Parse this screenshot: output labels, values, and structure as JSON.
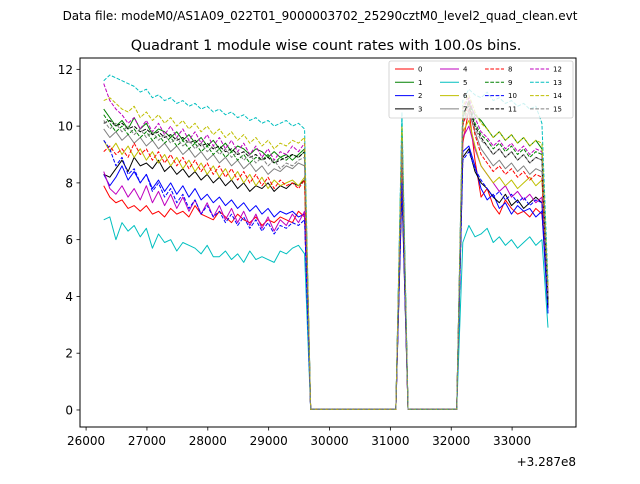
{
  "suptitle": "Data file: modeM0/AS1A09_022T01_9000003702_25290cztM0_level2_quad_clean.evt",
  "chart_data": {
    "type": "line",
    "title": "Quadrant 1 module wise count rates with 100.0s bins.",
    "xlabel": "",
    "ylabel": "",
    "x_offset_label": "+3.287e8",
    "xlim": [
      25900,
      34050
    ],
    "ylim": [
      -0.6,
      12.4
    ],
    "x_ticks": [
      26000,
      27000,
      28000,
      29000,
      30000,
      31000,
      32000,
      33000
    ],
    "x_tick_labels": [
      "26000",
      "27000",
      "28000",
      "29000",
      "30000",
      "31000",
      "32000",
      "33000"
    ],
    "y_ticks": [
      0,
      2,
      4,
      6,
      8,
      10,
      12
    ],
    "y_tick_labels": [
      "0",
      "2",
      "4",
      "6",
      "8",
      "10",
      "12"
    ],
    "grid": false,
    "legend_position": "top-right",
    "segments": [
      {
        "x_start": 26290,
        "x_end": 29690
      },
      {
        "x_start": 31090,
        "x_end": 31390
      },
      {
        "x_start": 32090,
        "x_end": 33590
      }
    ],
    "series": [
      {
        "name": "0",
        "color": "#ff0000",
        "dash": "solid",
        "seg_a": [
          7.9,
          7.5,
          7.3,
          7.4,
          7.1,
          7.2,
          7.0,
          7.2,
          6.9,
          7.0,
          6.8,
          7.1,
          6.9,
          7.0,
          6.8,
          7.2,
          6.9,
          6.8,
          6.7,
          7.0,
          6.8,
          6.6,
          6.9,
          6.7,
          6.6,
          6.8,
          6.5,
          6.7,
          6.6,
          6.8,
          6.7,
          6.6,
          7.0,
          6.8,
          0.02
        ],
        "seg_b": [
          0.02,
          8.5,
          0.02,
          0.02
        ],
        "seg_c": [
          0.02,
          9.4,
          10.6,
          8.8,
          7.5,
          7.8,
          7.2,
          6.9,
          7.4,
          7.1,
          6.9,
          7.0,
          6.8,
          7.1,
          6.9,
          4.4
        ]
      },
      {
        "name": "1",
        "color": "#008000",
        "dash": "solid",
        "seg_a": [
          10.6,
          10.3,
          10.0,
          10.2,
          9.9,
          10.3,
          9.9,
          10.1,
          9.7,
          9.9,
          9.8,
          9.6,
          9.8,
          9.5,
          9.7,
          9.4,
          9.6,
          9.3,
          9.5,
          9.2,
          9.4,
          9.1,
          9.3,
          9.2,
          9.0,
          9.2,
          9.1,
          8.9,
          9.1,
          8.9,
          9.0,
          8.8,
          9.0,
          9.2,
          0.02
        ],
        "seg_b": [
          0.02,
          9.8,
          0.02,
          0.02
        ],
        "seg_c": [
          0.02,
          10.3,
          10.8,
          10.4,
          10.2,
          9.9,
          9.6,
          9.8,
          9.5,
          9.7,
          9.4,
          9.6,
          9.3,
          9.5,
          9.2,
          3.7
        ]
      },
      {
        "name": "2",
        "color": "#0000ff",
        "dash": "solid",
        "seg_a": [
          8.3,
          7.9,
          8.2,
          8.6,
          8.1,
          8.4,
          8.0,
          8.3,
          7.8,
          8.1,
          7.7,
          8.0,
          7.6,
          7.9,
          7.5,
          7.8,
          7.4,
          7.6,
          7.3,
          7.5,
          7.2,
          7.4,
          7.1,
          7.3,
          7.0,
          7.2,
          6.9,
          7.1,
          6.8,
          7.0,
          6.9,
          7.0,
          6.8,
          6.9,
          0.02
        ],
        "seg_b": [
          0.02,
          8.2,
          0.02,
          0.02
        ],
        "seg_c": [
          0.02,
          9.1,
          9.3,
          8.6,
          7.8,
          7.4,
          7.6,
          7.1,
          7.3,
          6.9,
          7.2,
          7.0,
          7.1,
          6.8,
          7.0,
          3.4
        ]
      },
      {
        "name": "3",
        "color": "#000000",
        "dash": "solid",
        "seg_a": [
          8.3,
          8.2,
          8.5,
          8.8,
          8.4,
          8.9,
          8.6,
          8.7,
          8.5,
          8.8,
          8.4,
          8.6,
          8.3,
          8.5,
          8.2,
          8.4,
          8.1,
          8.3,
          8.0,
          8.2,
          7.9,
          8.1,
          7.8,
          8.0,
          7.7,
          7.9,
          7.8,
          8.0,
          7.7,
          7.9,
          7.8,
          8.0,
          7.9,
          8.1,
          0.02
        ],
        "seg_b": [
          0.02,
          7.8,
          0.02,
          0.02
        ],
        "seg_c": [
          0.02,
          8.9,
          9.2,
          8.4,
          8.0,
          7.8,
          7.5,
          7.3,
          7.6,
          7.2,
          7.4,
          7.1,
          7.3,
          7.5,
          7.3,
          3.6
        ]
      },
      {
        "name": "4",
        "color": "#bf00bf",
        "dash": "solid",
        "seg_a": [
          8.4,
          7.8,
          7.6,
          7.9,
          7.5,
          7.8,
          7.4,
          7.9,
          7.3,
          7.7,
          7.2,
          7.6,
          7.1,
          7.5,
          7.0,
          7.4,
          6.9,
          7.3,
          6.8,
          7.2,
          6.7,
          7.1,
          6.6,
          7.0,
          6.5,
          6.9,
          6.4,
          6.8,
          6.3,
          6.7,
          6.5,
          6.9,
          6.6,
          7.0,
          0.02
        ],
        "seg_b": [
          0.02,
          8.4,
          0.02,
          0.02
        ],
        "seg_c": [
          0.02,
          9.6,
          10.0,
          9.2,
          8.6,
          8.3,
          8.0,
          7.7,
          7.9,
          7.5,
          7.7,
          7.4,
          7.6,
          7.3,
          7.5,
          3.8
        ]
      },
      {
        "name": "5",
        "color": "#00bfbf",
        "dash": "solid",
        "seg_a": [
          6.7,
          6.8,
          6.0,
          6.6,
          6.3,
          6.5,
          6.1,
          6.4,
          5.7,
          6.2,
          5.9,
          6.0,
          5.6,
          5.9,
          5.8,
          5.7,
          5.5,
          5.8,
          5.4,
          5.4,
          5.6,
          5.3,
          5.5,
          5.2,
          5.6,
          5.3,
          5.4,
          5.3,
          5.2,
          5.6,
          5.5,
          5.7,
          5.8,
          5.5,
          0.02
        ],
        "seg_b": [
          0.02,
          10.2,
          0.02,
          0.02
        ],
        "seg_c": [
          0.02,
          5.9,
          6.5,
          6.1,
          6.2,
          6.4,
          5.9,
          6.1,
          5.8,
          6.0,
          5.7,
          5.9,
          6.1,
          5.8,
          6.0,
          2.9
        ]
      },
      {
        "name": "6",
        "color": "#bfbf00",
        "dash": "solid",
        "seg_a": [
          9.5,
          9.1,
          9.4,
          9.0,
          9.3,
          8.9,
          9.2,
          8.8,
          9.1,
          8.7,
          9.0,
          8.6,
          8.9,
          8.5,
          8.8,
          8.4,
          8.7,
          8.3,
          8.6,
          8.2,
          8.5,
          8.1,
          8.4,
          8.0,
          8.3,
          7.9,
          8.2,
          7.8,
          8.1,
          7.9,
          8.0,
          8.1,
          7.9,
          8.2,
          0.02
        ],
        "seg_b": [
          0.02,
          8.9,
          0.02,
          0.02
        ],
        "seg_c": [
          0.02,
          9.8,
          10.2,
          9.3,
          8.6,
          8.3,
          8.0,
          8.2,
          7.9,
          8.1,
          7.8,
          8.0,
          8.2,
          7.9,
          8.1,
          3.9
        ]
      },
      {
        "name": "7",
        "color": "#808080",
        "dash": "solid",
        "seg_a": [
          9.9,
          9.6,
          9.8,
          9.5,
          9.7,
          9.4,
          9.6,
          9.3,
          9.5,
          9.2,
          9.4,
          9.1,
          9.3,
          9.0,
          9.2,
          8.9,
          9.1,
          8.8,
          9.0,
          8.7,
          8.9,
          8.6,
          8.8,
          8.5,
          8.7,
          8.4,
          8.6,
          8.3,
          8.5,
          8.4,
          8.6,
          8.5,
          8.7,
          8.6,
          0.02
        ],
        "seg_b": [
          0.02,
          9.2,
          0.02,
          0.02
        ],
        "seg_c": [
          0.02,
          10.1,
          10.5,
          9.8,
          9.2,
          8.9,
          8.6,
          8.8,
          8.5,
          8.7,
          8.4,
          8.6,
          8.3,
          8.5,
          8.4,
          4.1
        ]
      },
      {
        "name": "8",
        "color": "#ff0000",
        "dash": "dashed",
        "seg_a": [
          9.1,
          9.3,
          9.0,
          9.2,
          8.9,
          9.4,
          9.0,
          9.2,
          8.8,
          9.1,
          8.7,
          9.0,
          8.6,
          8.9,
          8.5,
          8.8,
          8.4,
          8.7,
          8.3,
          8.6,
          8.2,
          8.5,
          8.1,
          8.4,
          8.0,
          8.3,
          7.9,
          8.2,
          7.8,
          8.1,
          7.9,
          8.0,
          7.8,
          8.1,
          0.02
        ],
        "seg_b": [
          0.02,
          9.0,
          0.02,
          0.02
        ],
        "seg_c": [
          0.02,
          10.0,
          10.9,
          9.7,
          9.0,
          8.7,
          8.4,
          8.6,
          8.3,
          8.5,
          8.2,
          8.4,
          8.1,
          8.3,
          8.2,
          4.0
        ]
      },
      {
        "name": "9",
        "color": "#008000",
        "dash": "dashed",
        "seg_a": [
          10.4,
          10.1,
          9.8,
          10.0,
          9.7,
          9.9,
          9.6,
          9.8,
          9.5,
          9.7,
          9.4,
          9.6,
          9.3,
          9.5,
          9.2,
          9.4,
          9.1,
          9.3,
          9.0,
          9.2,
          8.9,
          9.1,
          8.8,
          9.0,
          8.7,
          8.9,
          8.8,
          9.0,
          8.7,
          8.9,
          8.8,
          9.0,
          8.9,
          9.1,
          0.02
        ],
        "seg_b": [
          0.02,
          9.9,
          0.02,
          0.02
        ],
        "seg_c": [
          0.02,
          10.4,
          10.9,
          10.1,
          9.7,
          9.5,
          9.2,
          9.4,
          9.1,
          9.3,
          9.0,
          9.2,
          8.9,
          9.1,
          9.0,
          3.8
        ]
      },
      {
        "name": "10",
        "color": "#0000ff",
        "dash": "dashed",
        "seg_a": [
          9.5,
          9.2,
          8.6,
          8.9,
          8.3,
          8.5,
          8.0,
          8.3,
          7.7,
          8.0,
          7.5,
          7.8,
          7.3,
          7.6,
          7.1,
          7.4,
          6.9,
          7.2,
          6.8,
          7.0,
          6.6,
          6.9,
          6.5,
          6.8,
          6.4,
          6.7,
          6.3,
          6.6,
          6.2,
          6.5,
          6.4,
          6.6,
          6.5,
          6.7,
          0.02
        ],
        "seg_b": [
          0.02,
          8.0,
          0.02,
          0.02
        ],
        "seg_c": [
          0.02,
          8.8,
          9.1,
          8.5,
          8.1,
          7.8,
          7.5,
          7.7,
          7.4,
          7.6,
          7.3,
          7.5,
          7.2,
          7.4,
          7.3,
          3.5
        ]
      },
      {
        "name": "11",
        "color": "#000000",
        "dash": "dashed",
        "seg_a": [
          10.1,
          10.2,
          10.0,
          10.1,
          9.9,
          10.0,
          9.8,
          9.9,
          9.7,
          9.8,
          9.6,
          9.7,
          9.5,
          9.6,
          9.4,
          9.5,
          9.3,
          9.4,
          9.2,
          9.3,
          9.1,
          9.2,
          9.0,
          9.1,
          8.9,
          9.0,
          8.8,
          8.9,
          8.7,
          8.8,
          8.9,
          9.0,
          8.9,
          9.1,
          0.02
        ],
        "seg_b": [
          0.02,
          9.6,
          0.02,
          0.02
        ],
        "seg_c": [
          0.02,
          10.5,
          10.7,
          10.0,
          9.6,
          9.3,
          9.0,
          9.2,
          8.9,
          9.1,
          8.8,
          9.0,
          8.7,
          8.9,
          8.8,
          3.9
        ]
      },
      {
        "name": "12",
        "color": "#bf00bf",
        "dash": "dashed",
        "seg_a": [
          11.5,
          10.9,
          10.6,
          10.4,
          10.1,
          10.3,
          9.9,
          10.2,
          9.8,
          10.1,
          9.7,
          10.0,
          9.6,
          9.9,
          9.5,
          9.8,
          9.4,
          9.7,
          9.3,
          9.6,
          9.2,
          9.5,
          9.1,
          9.4,
          9.0,
          9.3,
          8.9,
          9.2,
          8.8,
          9.1,
          9.0,
          9.3,
          9.1,
          9.4,
          0.02
        ],
        "seg_b": [
          0.02,
          9.7,
          0.02,
          0.02
        ],
        "seg_c": [
          0.02,
          10.6,
          11.0,
          10.3,
          9.8,
          9.6,
          9.3,
          9.5,
          9.2,
          9.4,
          9.1,
          9.3,
          9.0,
          9.2,
          9.1,
          4.2
        ]
      },
      {
        "name": "13",
        "color": "#00bfbf",
        "dash": "dashed",
        "seg_a": [
          11.6,
          11.8,
          11.7,
          11.6,
          11.5,
          11.4,
          11.2,
          11.3,
          11.0,
          11.1,
          10.9,
          11.0,
          10.8,
          10.9,
          10.7,
          10.8,
          10.6,
          10.7,
          10.5,
          10.6,
          10.4,
          10.5,
          10.3,
          10.4,
          10.2,
          10.3,
          10.1,
          10.2,
          10.0,
          10.1,
          10.2,
          10.0,
          10.1,
          9.9,
          0.02
        ],
        "seg_b": [
          0.02,
          10.5,
          0.02,
          0.02
        ],
        "seg_c": [
          0.02,
          10.9,
          11.3,
          11.1,
          11.0,
          11.2,
          10.9,
          11.0,
          10.8,
          10.9,
          10.7,
          10.8,
          10.6,
          10.7,
          10.1,
          4.5
        ]
      },
      {
        "name": "14",
        "color": "#bfbf00",
        "dash": "dashed",
        "seg_a": [
          10.9,
          11.0,
          10.8,
          10.6,
          10.5,
          10.7,
          10.3,
          10.5,
          10.2,
          10.4,
          10.1,
          10.3,
          10.0,
          10.2,
          9.9,
          10.1,
          9.8,
          10.0,
          9.7,
          9.9,
          9.6,
          9.8,
          9.5,
          9.7,
          9.4,
          9.6,
          9.3,
          9.5,
          9.2,
          9.4,
          9.3,
          9.5,
          9.4,
          9.6,
          0.02
        ],
        "seg_b": [
          0.02,
          10.0,
          0.02,
          0.02
        ],
        "seg_c": [
          0.02,
          10.7,
          11.1,
          10.5,
          10.1,
          9.9,
          9.6,
          9.8,
          9.5,
          9.7,
          9.4,
          9.6,
          9.3,
          9.5,
          9.4,
          4.3
        ]
      },
      {
        "name": "15",
        "color": "#808080",
        "dash": "dashed",
        "seg_a": [
          10.2,
          9.9,
          10.1,
          9.8,
          10.0,
          9.7,
          9.9,
          9.6,
          9.8,
          9.5,
          9.7,
          9.4,
          9.6,
          9.3,
          9.5,
          9.2,
          9.4,
          9.1,
          9.3,
          9.0,
          9.2,
          8.9,
          9.1,
          8.8,
          9.0,
          8.7,
          8.9,
          8.6,
          8.8,
          8.5,
          8.7,
          8.6,
          8.8,
          8.9,
          0.02
        ],
        "seg_b": [
          0.02,
          9.4,
          0.02,
          0.02
        ],
        "seg_c": [
          0.02,
          10.2,
          10.6,
          9.9,
          9.5,
          9.3,
          9.0,
          9.2,
          8.9,
          9.1,
          8.8,
          9.0,
          8.7,
          8.9,
          8.8,
          4.0
        ]
      }
    ]
  }
}
